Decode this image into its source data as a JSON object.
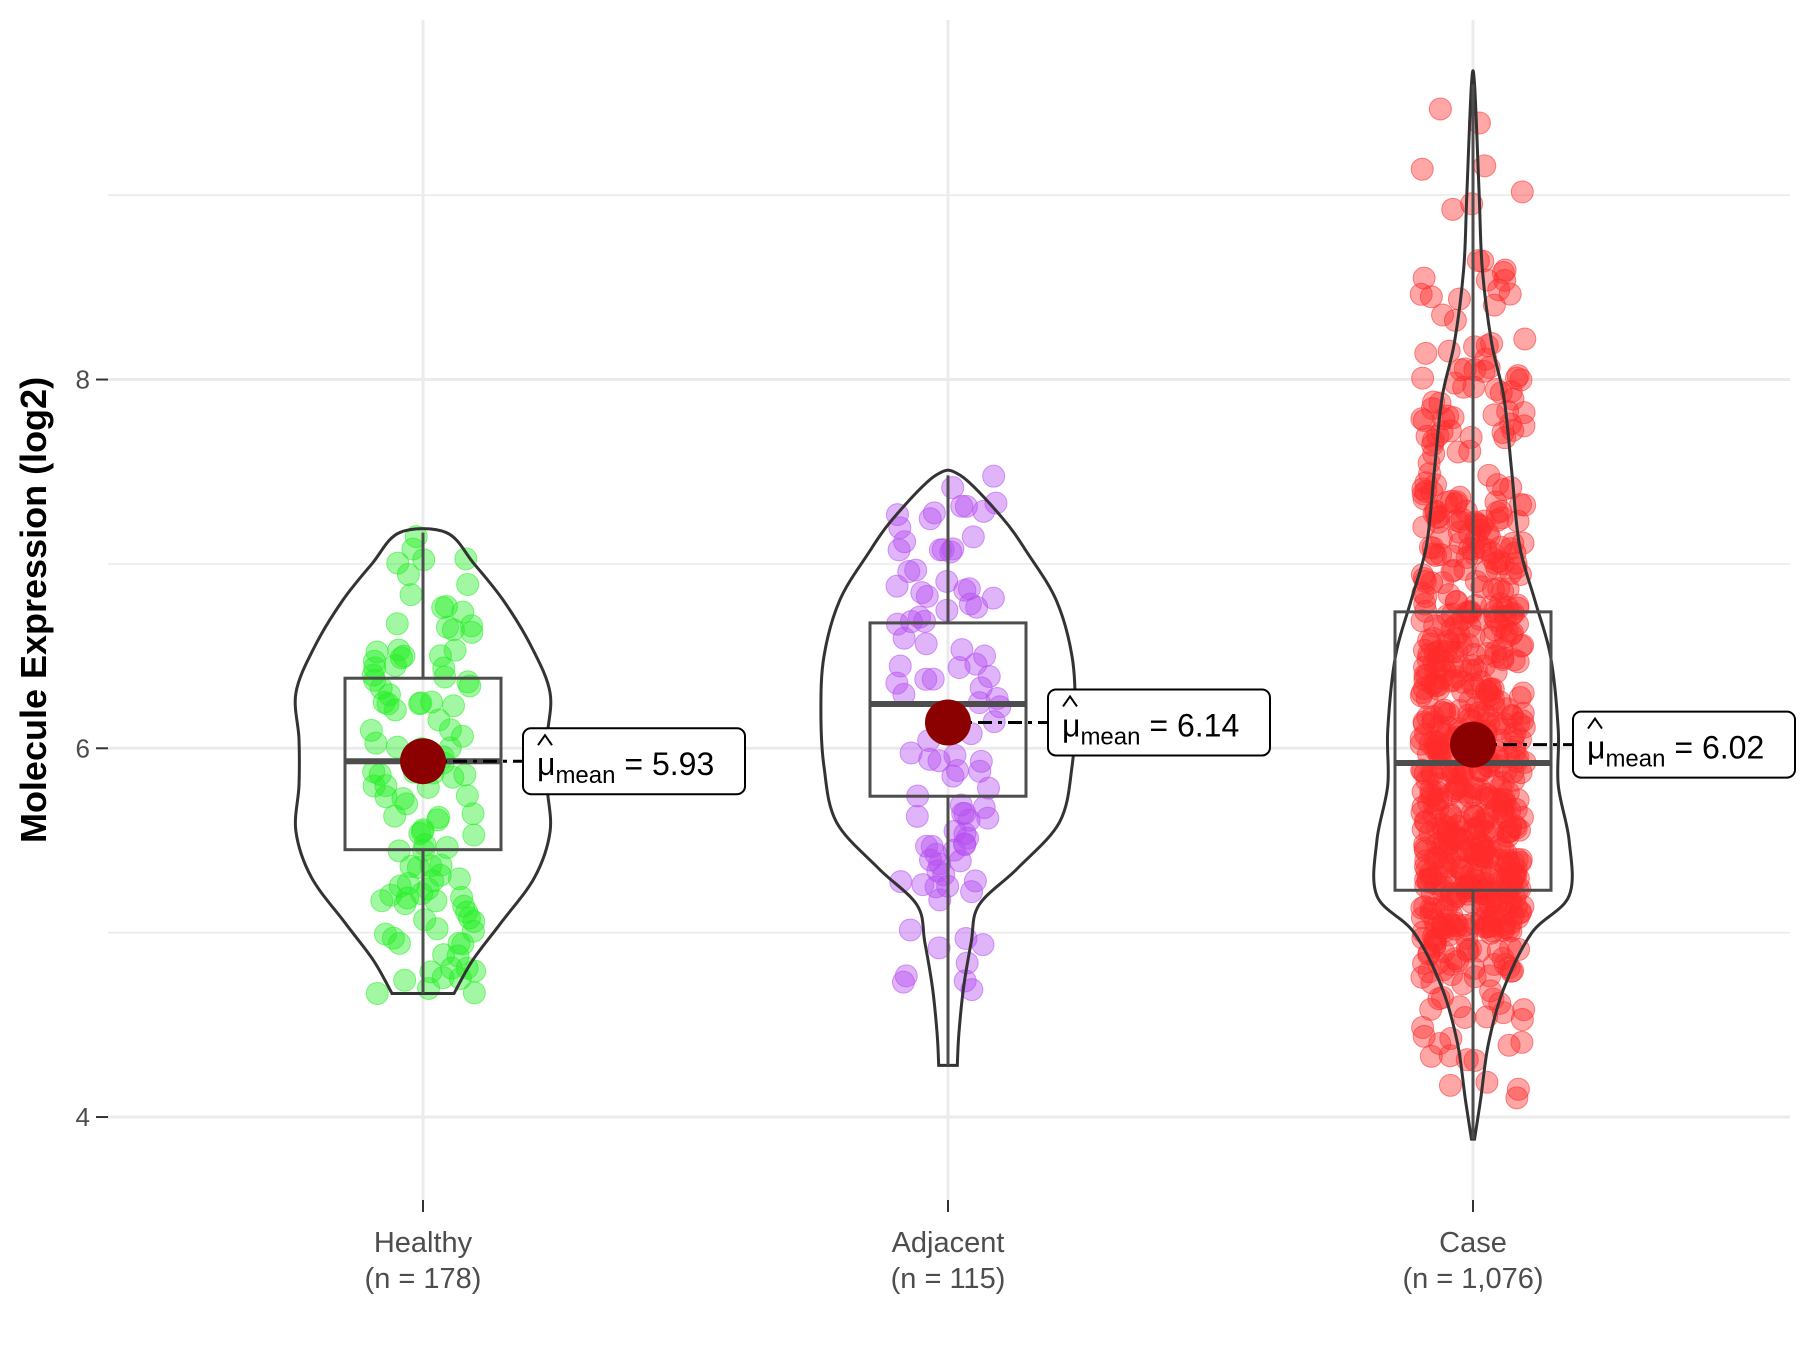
{
  "chart_data": {
    "type": "violin",
    "title": "",
    "xlabel": "",
    "ylabel": "Molecule Expression (log2)",
    "ylim": [
      3.55,
      9.95
    ],
    "yticks": [
      4,
      6,
      8
    ],
    "grid": true,
    "categories": [
      {
        "name": "Healthy",
        "n_label": "(n = 178)",
        "color": "#22ee22",
        "mean": 5.93,
        "mean_label": "5.93",
        "median": 5.93,
        "q1": 5.45,
        "q3": 6.38,
        "whisker_low": 4.67,
        "whisker_high": 7.17,
        "min": 4.67,
        "max": 7.17,
        "violin_profile": [
          [
            4.67,
            0.2
          ],
          [
            4.85,
            0.32
          ],
          [
            5.05,
            0.5
          ],
          [
            5.3,
            0.72
          ],
          [
            5.55,
            0.82
          ],
          [
            5.8,
            0.8
          ],
          [
            6.05,
            0.8
          ],
          [
            6.3,
            0.82
          ],
          [
            6.55,
            0.7
          ],
          [
            6.8,
            0.52
          ],
          [
            7.0,
            0.33
          ],
          [
            7.17,
            0.15
          ]
        ],
        "point_count": 120,
        "point_seed": 11
      },
      {
        "name": "Adjacent",
        "n_label": "(n = 115)",
        "color": "#b44cf0",
        "mean": 6.14,
        "mean_label": "6.14",
        "median": 6.24,
        "q1": 5.74,
        "q3": 6.68,
        "whisker_low": 4.28,
        "whisker_high": 7.48,
        "min": 4.28,
        "max": 7.48,
        "violin_profile": [
          [
            4.28,
            0.06
          ],
          [
            4.45,
            0.07
          ],
          [
            4.7,
            0.1
          ],
          [
            4.95,
            0.15
          ],
          [
            5.15,
            0.2
          ],
          [
            5.35,
            0.45
          ],
          [
            5.6,
            0.72
          ],
          [
            5.9,
            0.8
          ],
          [
            6.2,
            0.82
          ],
          [
            6.5,
            0.8
          ],
          [
            6.8,
            0.7
          ],
          [
            7.05,
            0.52
          ],
          [
            7.25,
            0.35
          ],
          [
            7.48,
            0.08
          ]
        ],
        "point_count": 100,
        "point_seed": 23
      },
      {
        "name": "Case",
        "n_label": "(n = 1,076)",
        "color": "#ff2a2a",
        "mean": 6.02,
        "mean_label": "6.02",
        "median": 5.92,
        "q1": 5.23,
        "q3": 6.74,
        "whisker_low": 3.88,
        "whisker_high": 9.6,
        "min": 3.88,
        "max": 9.6,
        "violin_profile": [
          [
            3.88,
            0.01
          ],
          [
            4.1,
            0.05
          ],
          [
            4.4,
            0.1
          ],
          [
            4.7,
            0.2
          ],
          [
            5.0,
            0.38
          ],
          [
            5.2,
            0.62
          ],
          [
            5.5,
            0.62
          ],
          [
            5.8,
            0.55
          ],
          [
            6.1,
            0.55
          ],
          [
            6.5,
            0.5
          ],
          [
            6.8,
            0.4
          ],
          [
            7.1,
            0.3
          ],
          [
            7.5,
            0.25
          ],
          [
            7.9,
            0.2
          ],
          [
            8.2,
            0.12
          ],
          [
            8.6,
            0.06
          ],
          [
            9.0,
            0.04
          ],
          [
            9.6,
            0.01
          ]
        ],
        "point_count": 700,
        "point_seed": 37
      }
    ],
    "mean_symbol": "μ",
    "mean_subscript": "mean"
  }
}
